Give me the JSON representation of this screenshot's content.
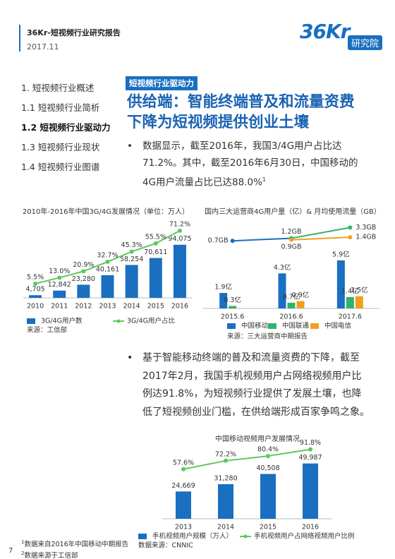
{
  "header": {
    "title": "36Kr-短视频行业研究报告",
    "date": "2017.11"
  },
  "logo": {
    "brand": "36Kr",
    "sub": "研究院"
  },
  "nav": {
    "items": [
      "1. 短视频行业概述",
      "1.1 短视频行业简析",
      "1.2 短视频行业驱动力",
      "1.3 短视频行业现状",
      "1.4 短视频行业图谱"
    ],
    "active": 2
  },
  "section_tag": "短视频行业驱动力",
  "title": "供给端：智能终端普及和流量资费下降为短视频提供创业土壤",
  "bullets": [
    {
      "marker": "•",
      "text": "数据显示，截至2016年，我国3/4G用户占比达71.2%。其中，截至2016年6月30日，中国移动的4G用户流量占比已达88.0%",
      "note": "1"
    },
    {
      "marker": "•",
      "text": "基于智能移动终端的普及和流量资费的下降，截至2017年2月，我国手机视频用户占网络视频用户比例达91.8%，为短视频行业提供了发展土壤，也降低了短视频创业门槛，在供给端形成百家争鸣之象。"
    }
  ],
  "chart_data": [
    {
      "type": "bar",
      "title": "2010年-2016年中国3G/4G发展情况（单位：万人）",
      "categories": [
        "2010",
        "2011",
        "2012",
        "2013",
        "2014",
        "2015",
        "2016"
      ],
      "series": [
        {
          "name": "3G/4G用户数",
          "color": "#1a6fc1",
          "values": [
            4705,
            12842,
            23280,
            40161,
            58254,
            70611,
            94075
          ],
          "value_labels": [
            "4,705",
            "12,842",
            "23,280",
            "40,161",
            "58,254",
            "70,611",
            "94,075"
          ]
        },
        {
          "name": "3G/4G用户占比",
          "color": "#5cc85c",
          "axis": "y2",
          "values": [
            5.5,
            13.0,
            20.9,
            32.7,
            45.3,
            55.5,
            71.2
          ],
          "value_labels": [
            "5.5%",
            "13.0%",
            "20.9%",
            "32.7%",
            "45.3%",
            "55.5%",
            "71.2%"
          ]
        }
      ],
      "ylim": [
        0,
        140000
      ],
      "y2lim": [
        -12,
        86
      ],
      "source": "来源：工信部"
    },
    {
      "type": "bar",
      "title": "国内三大运营商4G用户量（亿）& 月均使用流量（GB）",
      "categories": [
        "2015.6",
        "2016.6",
        "2017.6"
      ],
      "series": [
        {
          "name": "中国移动",
          "color": "#1a6fc1",
          "values": [
            1.9,
            4.3,
            5.9
          ],
          "value_labels": [
            "1.9亿",
            "4.3亿",
            "5.9亿"
          ]
        },
        {
          "name": "中国联通",
          "color": "#2fb36b",
          "values": [
            0.3,
            0.7,
            1.4
          ],
          "value_labels": [
            "0.3亿",
            "0.7亿",
            "1.4亿"
          ]
        },
        {
          "name": "中国电信",
          "color": "#f0a020",
          "values": [
            null,
            0.9,
            1.5
          ],
          "value_labels": [
            null,
            "0.9亿",
            "1.5亿"
          ]
        }
      ],
      "line_series": [
        {
          "color": "#1a6fc1",
          "values": [
            0.7,
            1.2,
            null
          ],
          "value_labels": [
            "0.7GB",
            "1.2GB",
            null
          ]
        },
        {
          "color": "#2fb36b",
          "values": [
            null,
            1.2,
            3.3
          ],
          "value_labels": [
            null,
            null,
            "3.3GB"
          ]
        },
        {
          "color": "#f0a020",
          "values": [
            null,
            0.9,
            1.4
          ],
          "value_labels": [
            null,
            "0.9GB",
            "1.4GB"
          ]
        }
      ],
      "ylim": [
        0,
        11
      ],
      "y2lim": [
        -12.5,
        5
      ],
      "source": "来源：三大运营商中期报告"
    },
    {
      "type": "bar",
      "title": "中国移动视频用户发展情况",
      "categories": [
        "2013",
        "2014",
        "2015",
        "2016"
      ],
      "series": [
        {
          "name": "手机视频用户规模（万人）",
          "color": "#1a6fc1",
          "values": [
            24669,
            31280,
            40508,
            49987
          ],
          "value_labels": [
            "24,669",
            "31,280",
            "40,508",
            "49,987"
          ]
        },
        {
          "name": "手机视频用户占网络视频用户比例",
          "color": "#5cc85c",
          "axis": "y2",
          "values": [
            57.6,
            72.2,
            80.4,
            91.8
          ],
          "value_labels": [
            "57.6%",
            "72.2%",
            "80.4%",
            "91.8%"
          ]
        }
      ],
      "ylim": [
        0,
        67000
      ],
      "y2lim": [
        -28,
        100
      ],
      "source": "数据来源：CNNIC"
    }
  ],
  "footnotes": [
    {
      "mark": "1",
      "text": "数据来自2016年中国移动中期报告"
    },
    {
      "mark": "2",
      "text": "数据来源于工信部"
    }
  ],
  "page_number": "7"
}
